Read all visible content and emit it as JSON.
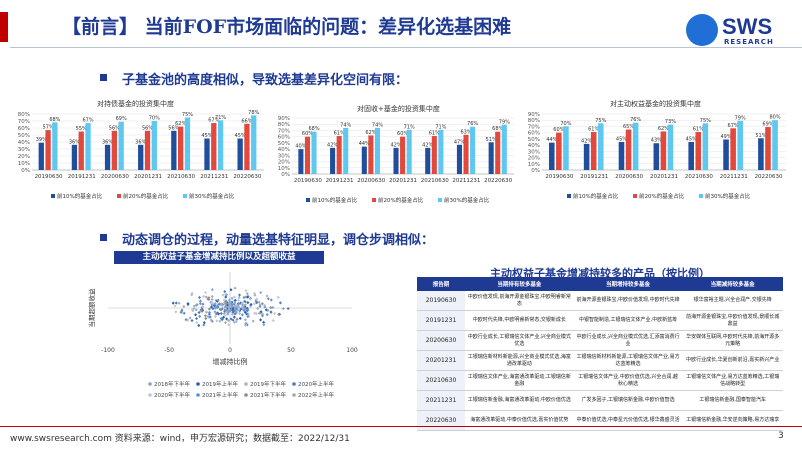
{
  "header": {
    "title": "【前言】 当前FOF市场面临的问题：差异化选基困难",
    "logo_text": "SWS",
    "logo_sub": "RESEARCH"
  },
  "section1": {
    "heading": "子基金池的高度相似，导致选基差异化空间有限："
  },
  "section2": {
    "heading": "动态调仓的过程，动量选基特征明显，调仓步调相似："
  },
  "colors": {
    "s1": "#1f4e9c",
    "s2": "#e0493c",
    "s3": "#5ec8f0",
    "brand": "#1f3a93",
    "accent": "#c00000"
  },
  "bar_charts": [
    {
      "title": "对持债基金的投资集中度",
      "categories": [
        "20190630",
        "20191231",
        "20200630",
        "20201231",
        "20210630",
        "20211231",
        "20220630"
      ],
      "ylim": [
        0,
        80
      ],
      "yticks": [
        "0%",
        "10%",
        "20%",
        "30%",
        "40%",
        "50%",
        "60%",
        "70%",
        "80%"
      ],
      "legend": [
        "前10%的基金占比",
        "前20%的基金占比",
        "前30%的基金占比"
      ],
      "series": [
        {
          "name": "前10%的基金占比",
          "values": [
            39,
            36,
            36,
            36,
            56,
            45,
            45
          ],
          "labels": [
            "39%",
            "36%",
            "36%",
            "36%",
            "56%",
            "45%",
            "45%"
          ]
        },
        {
          "name": "前20%的基金占比",
          "values": [
            57,
            55,
            56,
            56,
            62,
            67,
            66
          ],
          "labels": [
            "57%",
            "55%",
            "56%",
            "56%",
            "62%",
            "67%",
            "66%"
          ]
        },
        {
          "name": "前30%的基金占比",
          "values": [
            68,
            67,
            69,
            70,
            75,
            71,
            78
          ],
          "labels": [
            "68%",
            "67%",
            "69%",
            "70%",
            "75%",
            "71%",
            "78%"
          ]
        }
      ]
    },
    {
      "title": "对固收+基金的投资集中度",
      "categories": [
        "20190630",
        "20191231",
        "20200630",
        "20201231",
        "20210630",
        "20211231",
        "20220630"
      ],
      "ylim": [
        0,
        90
      ],
      "yticks": [
        "0%",
        "10%",
        "20%",
        "30%",
        "40%",
        "50%",
        "60%",
        "70%",
        "80%",
        "90%"
      ],
      "legend": [
        "前10%的基金占比",
        "前20%的基金占比",
        "前30%的基金占比"
      ],
      "series": [
        {
          "name": "前10%的基金占比",
          "values": [
            40,
            42,
            44,
            42,
            42,
            47,
            51
          ],
          "labels": [
            "40%",
            "42%",
            "44%",
            "42%",
            "42%",
            "47%",
            "51%"
          ]
        },
        {
          "name": "前20%的基金占比",
          "values": [
            60,
            61,
            62,
            60,
            61,
            63,
            68
          ],
          "labels": [
            "60%",
            "61%",
            "62%",
            "60%",
            "61%",
            "63%",
            "68%"
          ]
        },
        {
          "name": "前30%的基金占比",
          "values": [
            68,
            74,
            74,
            71,
            71,
            76,
            79
          ],
          "labels": [
            "68%",
            "74%",
            "74%",
            "71%",
            "71%",
            "76%",
            "79%"
          ]
        }
      ]
    },
    {
      "title": "对主动权益基金的投资集中度",
      "categories": [
        "20190630",
        "20191231",
        "20200630",
        "20201231",
        "20210630",
        "20211231",
        "20220630"
      ],
      "ylim": [
        0,
        90
      ],
      "yticks": [
        "0%",
        "10%",
        "20%",
        "30%",
        "40%",
        "50%",
        "60%",
        "70%",
        "80%",
        "90%"
      ],
      "legend": [
        "前10%的基金占比",
        "前20%的基金占比",
        "前30%的基金占比"
      ],
      "series": [
        {
          "name": "前10%的基金占比",
          "values": [
            44,
            42,
            45,
            43,
            45,
            49,
            51
          ],
          "labels": [
            "44%",
            "42%",
            "45%",
            "43%",
            "45%",
            "49%",
            "51%"
          ]
        },
        {
          "name": "前20%的基金占比",
          "values": [
            60,
            61,
            65,
            62,
            61,
            67,
            69
          ],
          "labels": [
            "60%",
            "61%",
            "65%",
            "62%",
            "61%",
            "67%",
            "69%"
          ]
        },
        {
          "name": "前30%的基金占比",
          "values": [
            70,
            75,
            76,
            73,
            75,
            79,
            80
          ],
          "labels": [
            "70%",
            "75%",
            "76%",
            "73%",
            "75%",
            "79%",
            "80%"
          ]
        }
      ]
    }
  ],
  "scatter": {
    "title": "主动权益子基金增减持比例以及超额收益",
    "xlabel": "增减持比例",
    "ylabel": "当期超额收益",
    "xticks": [
      "-100",
      "-50",
      "0",
      "50",
      "100"
    ],
    "legend": [
      "2018年下半年",
      "2019年上半年",
      "2019年下半年",
      "2020年上半年",
      "2020年下半年",
      "2021年上半年",
      "2021年下半年",
      "2022年上半年"
    ]
  },
  "table": {
    "title": "主动权益子基金增减持较多的产品（按比例）",
    "headers": [
      "报告期",
      "当期持有较多基金",
      "当期增持较多基金",
      "当期减持较多基金"
    ],
    "rows": [
      [
        "20190630",
        "中欧价值发现,前海开源金银珠宝,中欧明睿新常态",
        "前海开源金银珠宝,中欧价值发现,中欧时代先锋",
        "银华富裕主题,兴全合润产,交银先锋"
      ],
      [
        "20191231",
        "中欧时代先锋,中欧明睿新常态,交银新成长",
        "中银智能制造,工银瑞信文体产业,中欧新蓝筹",
        "前海开源金银珠宝,中欧价值发现,景顺长城鼎益"
      ],
      [
        "20200630",
        "中欧行业成长,工银瑞信文体产业,兴全商业模式优选",
        "中欧行业成长,兴全商业模式优选,汇添富消费行业",
        "华安媒体互联网,中欧时代先锋,前海开源多元策略"
      ],
      [
        "20201231",
        "工银瑞信新材料新能源,兴全商业模式优选,海富通改革驱动",
        "工银瑞信新材料新能源,工银瑞信文体产业,易方达蓝筹精选",
        "中欧行业成长,华夏创新前沿,嘉实新兴产业"
      ],
      [
        "20210630",
        "工银瑞信文体产业,海富通改革驱动,工银瑞信新金融",
        "工银瑞信文体产业,中欧价值优选,兴全合润,越秋心精选",
        "工银瑞信文体产业,易方达蓝筹精选,工银瑞信战略转型"
      ],
      [
        "20211231",
        "工银瑞信新金融,海富通改革驱动,中欧价值优选",
        "广发多因子,工银瑞信新金融,中欧价值智选",
        "工银瑞信新金融,国泰智能汽车"
      ],
      [
        "20220630",
        "海富通改革驱动,中泰价值优选,嘉实价值优势",
        "中泰价值优选,中泰星元价值优选,银华鑫盛灵活",
        "工银瑞信新金融,华安逆向策略,易方达瑞享"
      ]
    ]
  },
  "footer": {
    "text": "www.swsresearch.com   资料来源：wind，申万宏源研究；数据截至：2022/12/31",
    "page": "3"
  }
}
